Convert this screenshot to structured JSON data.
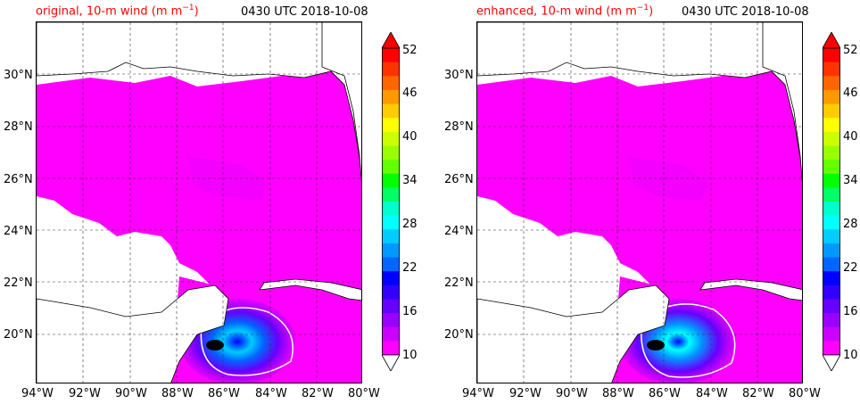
{
  "panels": [
    {
      "id": "left",
      "title_left_text": "original, 10-m wind (m m",
      "title_left_sup": "−1",
      "title_left_close": ")",
      "title_right": "0430 UTC 2018-10-08"
    },
    {
      "id": "right",
      "title_left_text": "enhanced, 10-m wind (m m",
      "title_left_sup": "−1",
      "title_left_close": ")",
      "title_right": "0430 UTC 2018-10-08"
    }
  ],
  "axes": {
    "lon_ticks": [
      "94°W",
      "92°W",
      "90°W",
      "88°W",
      "86°W",
      "84°W",
      "82°W",
      "80°W"
    ],
    "lat_ticks": [
      "20°N",
      "22°N",
      "24°N",
      "26°N",
      "28°N",
      "30°N"
    ]
  },
  "colorbar": {
    "labels": [
      "52",
      "46",
      "40",
      "34",
      "28",
      "22",
      "16",
      "10"
    ],
    "colors": [
      "#ff0000",
      "#ff3300",
      "#ff6600",
      "#ff9900",
      "#ffcc00",
      "#ffff00",
      "#ccff00",
      "#99ff00",
      "#66ff00",
      "#00ff00",
      "#00ff66",
      "#00ffcc",
      "#00ffff",
      "#00ccff",
      "#0099ff",
      "#0066ff",
      "#0000ff",
      "#3300ff",
      "#6600ff",
      "#9900ff",
      "#cc00ff",
      "#ff00ff"
    ],
    "min": 10,
    "max": 52,
    "step": 2,
    "extend": "both"
  }
}
